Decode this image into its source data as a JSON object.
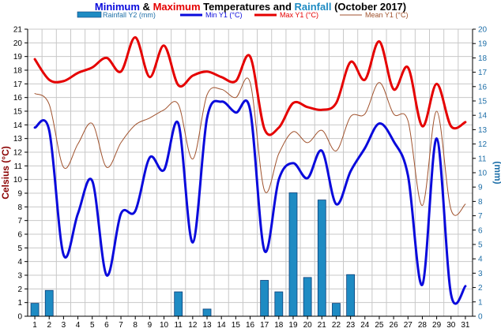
{
  "colors": {
    "min": "#0a0adc",
    "max": "#e50000",
    "mean": "#a0522d",
    "rain": "#1e8bc3",
    "rain_edge": "#0a3f7a",
    "left_axis": "#8b0000",
    "right_axis": "#1e6fa8",
    "grid": "#c8c8c8"
  },
  "chart_data": {
    "type": "line",
    "title_parts": [
      {
        "text": "Minimum",
        "color": "#0a0adc"
      },
      {
        "text": " & ",
        "color": "#000000"
      },
      {
        "text": "Maximum",
        "color": "#e50000"
      },
      {
        "text": " Temperatures and ",
        "color": "#000000"
      },
      {
        "text": "Rainfall",
        "color": "#1e8bc3"
      },
      {
        "text": " (October 2017)",
        "color": "#000000"
      }
    ],
    "ylabel_left": "Celsius (°C)",
    "ylabel_right": "(mm)",
    "ylim_left": [
      0,
      21
    ],
    "ylim_right": [
      0,
      20
    ],
    "y_ticks_left": [
      "0",
      "1",
      "2",
      "3",
      "4",
      "5",
      "6",
      "7",
      "8",
      "9",
      "10",
      "11",
      "12",
      "13",
      "14",
      "15",
      "16",
      "17",
      "18",
      "19",
      "20",
      "21"
    ],
    "y_ticks_right": [
      "0",
      "1",
      "2",
      "3",
      "4",
      "5",
      "6",
      "7",
      "8",
      "9",
      "10",
      "11",
      "12",
      "13",
      "14",
      "15",
      "16",
      "17",
      "18",
      "19",
      "20"
    ],
    "x": [
      "1",
      "2",
      "3",
      "4",
      "5",
      "6",
      "7",
      "8",
      "9",
      "10",
      "11",
      "12",
      "13",
      "14",
      "15",
      "16",
      "17",
      "18",
      "19",
      "20",
      "21",
      "22",
      "23",
      "24",
      "25",
      "26",
      "27",
      "28",
      "29",
      "30",
      "31"
    ],
    "grid": true,
    "legend_position": "top",
    "series": [
      {
        "name": "Rainfall Y2 (mm)",
        "type": "bar",
        "axis": "right",
        "values": [
          0.9,
          1.8,
          0,
          0,
          0,
          0,
          0,
          0,
          0,
          0,
          1.7,
          0,
          0.5,
          0,
          0,
          0,
          2.5,
          1.7,
          8.6,
          2.7,
          8.1,
          0.9,
          2.9,
          0,
          0,
          0,
          0,
          0,
          0,
          0,
          0
        ]
      },
      {
        "name": "Min Y1 (°C)",
        "type": "line",
        "axis": "left",
        "values": [
          13.8,
          13.6,
          4.5,
          7.5,
          9.9,
          3.0,
          7.5,
          7.7,
          11.6,
          10.7,
          14.1,
          5.4,
          14.5,
          15.7,
          14.9,
          15.1,
          4.8,
          10.0,
          11.2,
          10.1,
          12.1,
          8.2,
          10.6,
          12.3,
          14.1,
          12.8,
          10.3,
          2.3,
          13.0,
          1.6,
          2.2
        ]
      },
      {
        "name": "Max Y1 (°C)",
        "type": "line",
        "axis": "left",
        "values": [
          18.8,
          17.3,
          17.2,
          17.8,
          18.2,
          18.9,
          17.9,
          20.4,
          17.5,
          19.8,
          16.9,
          17.6,
          17.9,
          17.5,
          17.2,
          19.0,
          13.7,
          13.8,
          15.6,
          15.3,
          15.1,
          15.6,
          18.6,
          17.3,
          20.1,
          16.6,
          18.2,
          13.9,
          17.0,
          13.9,
          14.2
        ]
      },
      {
        "name": "Mean Y1 (°C)",
        "type": "line",
        "axis": "left",
        "values": [
          16.3,
          15.5,
          10.9,
          12.6,
          14.1,
          10.9,
          12.7,
          14.0,
          14.5,
          15.1,
          15.5,
          11.5,
          16.2,
          16.6,
          16.0,
          17.1,
          9.2,
          11.9,
          13.5,
          12.7,
          13.6,
          12.1,
          14.6,
          14.8,
          17.1,
          14.8,
          14.3,
          8.1,
          15.0,
          7.8,
          8.2
        ]
      }
    ]
  }
}
